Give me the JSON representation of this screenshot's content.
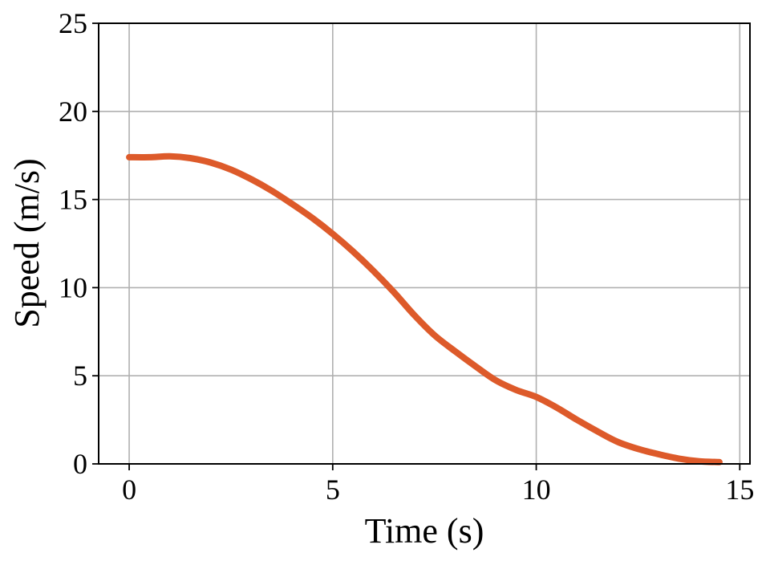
{
  "chart_data": {
    "type": "line",
    "title": "",
    "xlabel": "Time (s)",
    "ylabel": "Speed (m/s)",
    "xlim": [
      -0.75,
      15.25
    ],
    "ylim": [
      0,
      25
    ],
    "xticks": [
      0,
      5,
      10,
      15
    ],
    "yticks": [
      0,
      5,
      10,
      15,
      20,
      25
    ],
    "xtick_labels": [
      "0",
      "5",
      "10",
      "15"
    ],
    "ytick_labels": [
      "0",
      "5",
      "10",
      "15",
      "20",
      "25"
    ],
    "grid": true,
    "legend": "none",
    "series": [
      {
        "color": "#dd5a2a",
        "x": [
          0,
          0.5,
          1.0,
          1.5,
          2.0,
          2.5,
          3.0,
          3.5,
          4.0,
          4.5,
          5.0,
          5.5,
          6.0,
          6.5,
          7.0,
          7.5,
          8.0,
          8.5,
          9.0,
          9.5,
          10.0,
          10.5,
          11.0,
          11.5,
          12.0,
          12.5,
          13.0,
          13.5,
          14.0,
          14.5
        ],
        "y": [
          17.4,
          17.4,
          17.45,
          17.35,
          17.1,
          16.7,
          16.15,
          15.5,
          14.75,
          13.95,
          13.05,
          12.05,
          10.95,
          9.75,
          8.45,
          7.3,
          6.4,
          5.55,
          4.75,
          4.2,
          3.8,
          3.2,
          2.5,
          1.85,
          1.25,
          0.85,
          0.55,
          0.3,
          0.15,
          0.1
        ]
      }
    ]
  }
}
